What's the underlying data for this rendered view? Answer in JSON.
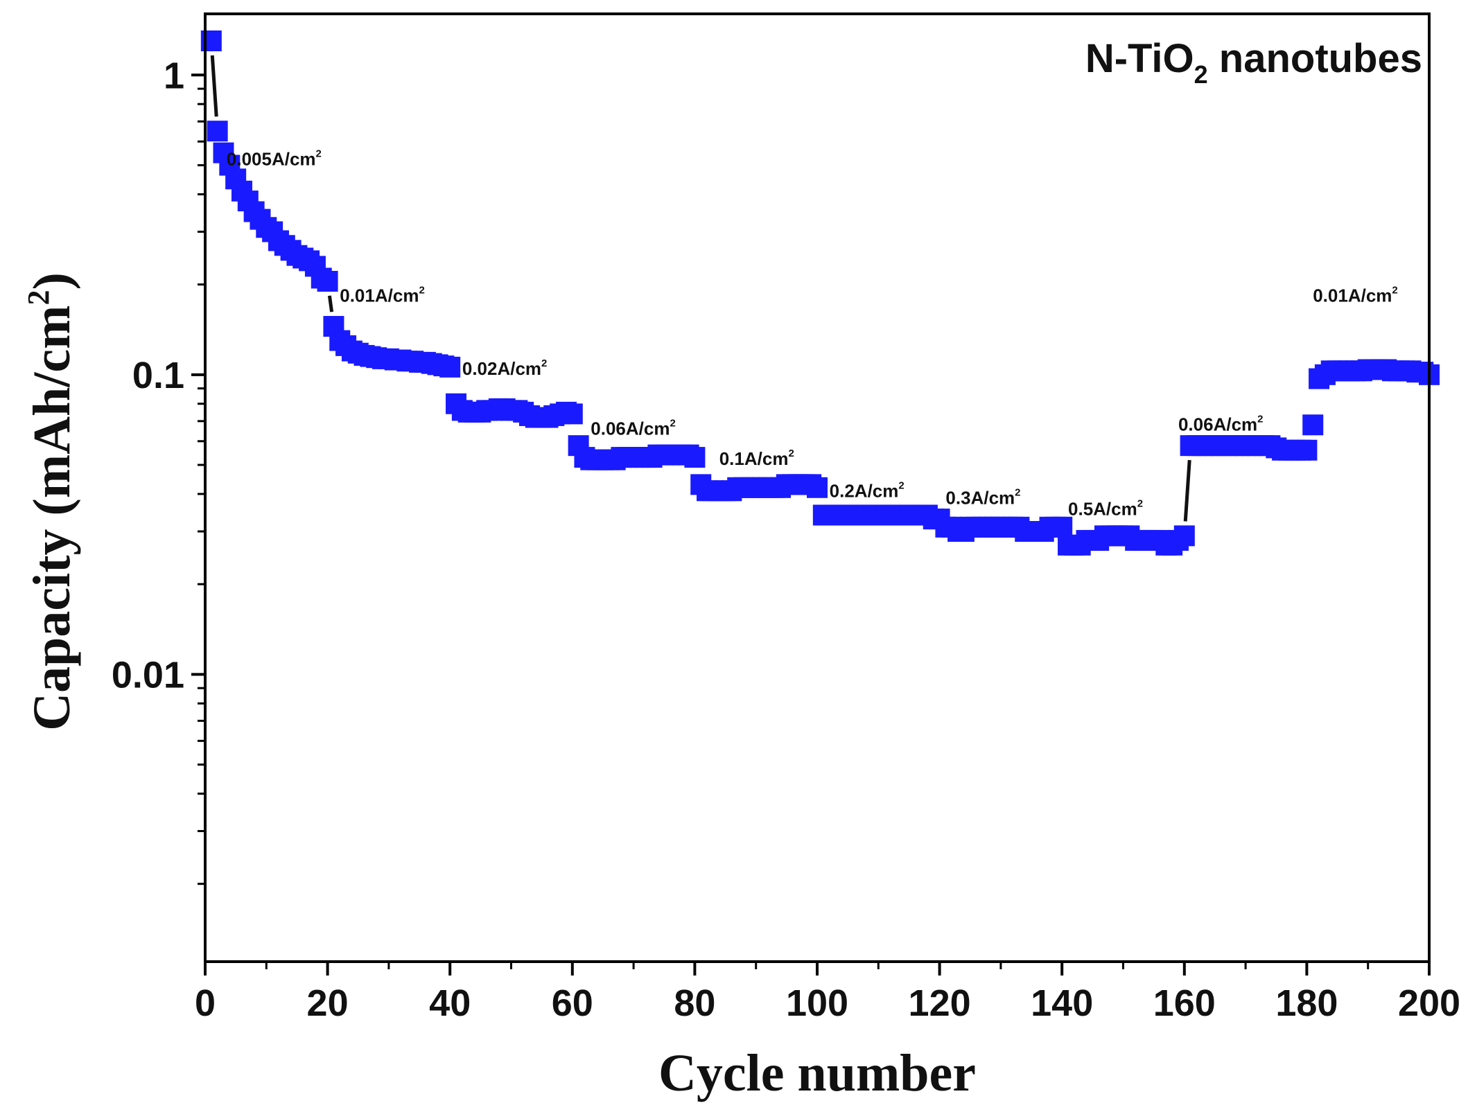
{
  "chart_data": {
    "type": "scatter",
    "title": {
      "prefix": "N-TiO",
      "subscript": "2",
      "suffix": " nanotubes"
    },
    "xlabel": "Cycle number",
    "ylabel": {
      "text": "Capacity (mAh/cm",
      "superscript": "2",
      "close": ")"
    },
    "xlim": [
      0,
      200
    ],
    "ylim": [
      0.0011,
      1.6
    ],
    "yscale": "log",
    "x_ticks": [
      0,
      20,
      40,
      60,
      80,
      100,
      120,
      140,
      160,
      180,
      200
    ],
    "x_tick_labels": [
      "0",
      "20",
      "40",
      "60",
      "80",
      "100",
      "120",
      "140",
      "160",
      "180",
      "200"
    ],
    "y_ticks": [
      1,
      0.1,
      0.01
    ],
    "y_tick_labels": [
      "1",
      "0.1",
      "0.01"
    ],
    "marker_color": "#1a1aff",
    "series": [
      {
        "name": "N-TiO2 nanotubes",
        "x": [
          1,
          2,
          3,
          4,
          5,
          6,
          7,
          8,
          9,
          10,
          11,
          12,
          13,
          14,
          15,
          16,
          17,
          18,
          19,
          20,
          21,
          22,
          23,
          24,
          25,
          26,
          27,
          28,
          29,
          30,
          31,
          32,
          33,
          34,
          35,
          36,
          37,
          38,
          39,
          40,
          41,
          42,
          43,
          44,
          45,
          46,
          47,
          48,
          49,
          50,
          51,
          52,
          53,
          54,
          55,
          56,
          57,
          58,
          59,
          60,
          61,
          62,
          63,
          64,
          65,
          66,
          67,
          68,
          69,
          70,
          71,
          72,
          73,
          74,
          75,
          76,
          77,
          78,
          79,
          80,
          81,
          82,
          83,
          84,
          85,
          86,
          87,
          88,
          89,
          90,
          91,
          92,
          93,
          94,
          95,
          96,
          97,
          98,
          99,
          100,
          101,
          102,
          103,
          104,
          105,
          106,
          107,
          108,
          109,
          110,
          111,
          112,
          113,
          114,
          115,
          116,
          117,
          118,
          119,
          120,
          121,
          122,
          123,
          124,
          125,
          126,
          127,
          128,
          129,
          130,
          131,
          132,
          133,
          134,
          135,
          136,
          137,
          138,
          139,
          140,
          141,
          142,
          143,
          144,
          145,
          146,
          147,
          148,
          149,
          150,
          151,
          152,
          153,
          154,
          155,
          156,
          157,
          158,
          159,
          160,
          161,
          162,
          163,
          164,
          165,
          166,
          167,
          168,
          169,
          170,
          171,
          172,
          173,
          174,
          175,
          176,
          177,
          178,
          179,
          180,
          181,
          182,
          183,
          184,
          185,
          186,
          187,
          188,
          189,
          190,
          191,
          192,
          193,
          194,
          195,
          196,
          197,
          198,
          199,
          200
        ],
        "y": [
          1.3,
          0.65,
          0.55,
          0.5,
          0.45,
          0.41,
          0.38,
          0.35,
          0.33,
          0.31,
          0.3,
          0.28,
          0.27,
          0.26,
          0.25,
          0.245,
          0.24,
          0.23,
          0.21,
          0.205,
          0.145,
          0.13,
          0.125,
          0.12,
          0.118,
          0.116,
          0.115,
          0.114,
          0.113,
          0.113,
          0.112,
          0.112,
          0.111,
          0.111,
          0.11,
          0.11,
          0.109,
          0.108,
          0.107,
          0.106,
          0.08,
          0.076,
          0.075,
          0.075,
          0.075,
          0.076,
          0.076,
          0.077,
          0.077,
          0.076,
          0.076,
          0.075,
          0.073,
          0.072,
          0.072,
          0.072,
          0.073,
          0.074,
          0.075,
          0.074,
          0.058,
          0.053,
          0.052,
          0.052,
          0.052,
          0.052,
          0.052,
          0.053,
          0.053,
          0.053,
          0.053,
          0.053,
          0.053,
          0.054,
          0.054,
          0.054,
          0.054,
          0.054,
          0.054,
          0.053,
          0.043,
          0.041,
          0.041,
          0.041,
          0.041,
          0.041,
          0.042,
          0.042,
          0.042,
          0.042,
          0.042,
          0.042,
          0.042,
          0.042,
          0.043,
          0.043,
          0.043,
          0.043,
          0.043,
          0.042,
          0.034,
          0.034,
          0.034,
          0.034,
          0.034,
          0.034,
          0.034,
          0.034,
          0.034,
          0.034,
          0.034,
          0.034,
          0.034,
          0.034,
          0.034,
          0.034,
          0.034,
          0.034,
          0.033,
          0.033,
          0.031,
          0.031,
          0.03,
          0.03,
          0.031,
          0.031,
          0.031,
          0.031,
          0.031,
          0.031,
          0.031,
          0.031,
          0.031,
          0.03,
          0.03,
          0.03,
          0.03,
          0.031,
          0.031,
          0.031,
          0.027,
          0.027,
          0.027,
          0.028,
          0.028,
          0.028,
          0.029,
          0.029,
          0.029,
          0.029,
          0.029,
          0.028,
          0.028,
          0.028,
          0.028,
          0.028,
          0.027,
          0.027,
          0.028,
          0.029,
          0.058,
          0.058,
          0.058,
          0.058,
          0.058,
          0.058,
          0.058,
          0.058,
          0.058,
          0.058,
          0.058,
          0.058,
          0.058,
          0.058,
          0.057,
          0.056,
          0.056,
          0.056,
          0.056,
          0.056,
          0.068,
          0.097,
          0.1,
          0.103,
          0.103,
          0.103,
          0.103,
          0.103,
          0.103,
          0.104,
          0.104,
          0.104,
          0.104,
          0.103,
          0.103,
          0.103,
          0.103,
          0.102,
          0.102,
          0.1
        ]
      }
    ],
    "annotations": [
      {
        "label": "0.005A/cm",
        "sup": "2",
        "x": 3.5,
        "y": 0.5
      },
      {
        "label": "0.01A/cm",
        "sup": "2",
        "x": 22,
        "y": 0.175
      },
      {
        "label": "0.02A/cm",
        "sup": "2",
        "x": 42,
        "y": 0.1
      },
      {
        "label": "0.06A/cm",
        "sup": "2",
        "x": 63,
        "y": 0.063
      },
      {
        "label": "0.1A/cm",
        "sup": "2",
        "x": 84,
        "y": 0.05
      },
      {
        "label": "0.2A/cm",
        "sup": "2",
        "x": 102,
        "y": 0.039
      },
      {
        "label": "0.3A/cm",
        "sup": "2",
        "x": 121,
        "y": 0.037
      },
      {
        "label": "0.5A/cm",
        "sup": "2",
        "x": 141,
        "y": 0.034
      },
      {
        "label": "0.06A/cm",
        "sup": "2",
        "x": 159,
        "y": 0.065
      },
      {
        "label": "0.01A/cm",
        "sup": "2",
        "x": 181,
        "y": 0.175
      }
    ]
  }
}
